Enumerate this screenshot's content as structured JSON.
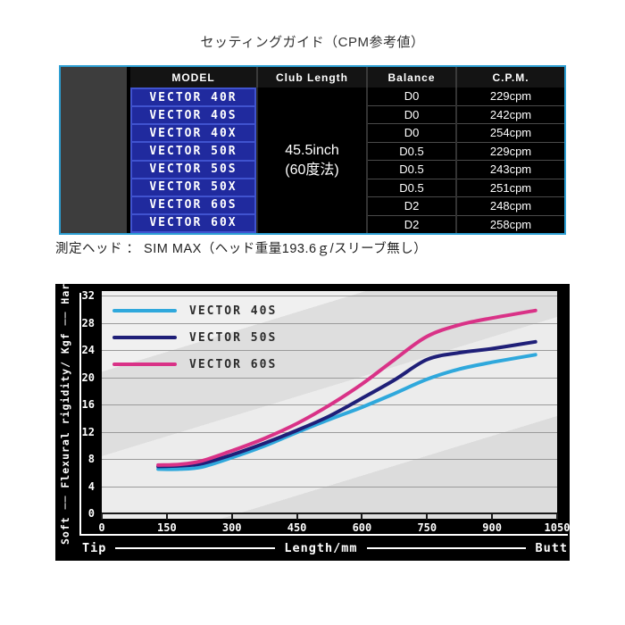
{
  "title": "セッティングガイド（CPM参考値）",
  "table": {
    "headers": [
      "MODEL",
      "Club Length",
      "Balance",
      "C.P.M."
    ],
    "club_length_line1": "45.5inch",
    "club_length_line2": "(60度法)",
    "rows": [
      {
        "model": "VECTOR 40R",
        "balance": "D0",
        "cpm": "229cpm"
      },
      {
        "model": "VECTOR 40S",
        "balance": "D0",
        "cpm": "242cpm"
      },
      {
        "model": "VECTOR 40X",
        "balance": "D0",
        "cpm": "254cpm"
      },
      {
        "model": "VECTOR 50R",
        "balance": "D0.5",
        "cpm": "229cpm"
      },
      {
        "model": "VECTOR 50S",
        "balance": "D0.5",
        "cpm": "243cpm"
      },
      {
        "model": "VECTOR 50X",
        "balance": "D0.5",
        "cpm": "251cpm"
      },
      {
        "model": "VECTOR 60S",
        "balance": "D2",
        "cpm": "248cpm"
      },
      {
        "model": "VECTOR 60X",
        "balance": "D2",
        "cpm": "258cpm"
      }
    ]
  },
  "note": "測定ヘッド ： SIM MAX（ヘッド重量193.6ｇ/スリーブ無し）",
  "colors": {
    "table_border": "#2d9fd3",
    "model_cell_bg": "#202a9e",
    "model_cell_border": "#4053cf",
    "side_panel": "#3d3d3d"
  },
  "chart_data": {
    "type": "line",
    "title": "",
    "xlabel": "Length/mm",
    "ylabel": "Soft ── Flexural rigidity/ Kgf ── Hard",
    "x_end_left": "Tip",
    "x_end_right": "Butt",
    "xlim": [
      0,
      1050
    ],
    "ylim": [
      0,
      33
    ],
    "x_ticks": [
      0,
      150,
      300,
      450,
      600,
      750,
      900,
      1050
    ],
    "y_ticks": [
      0,
      4,
      8,
      12,
      16,
      20,
      24,
      28,
      32
    ],
    "grid": true,
    "legend_position": "top-left",
    "series": [
      {
        "name": "VECTOR 40S",
        "color": "#2fa8dc",
        "points": [
          [
            130,
            6.5
          ],
          [
            180,
            6.5
          ],
          [
            230,
            6.8
          ],
          [
            300,
            8.2
          ],
          [
            375,
            9.9
          ],
          [
            450,
            11.9
          ],
          [
            525,
            13.8
          ],
          [
            600,
            15.6
          ],
          [
            675,
            17.6
          ],
          [
            750,
            19.7
          ],
          [
            825,
            21.2
          ],
          [
            900,
            22.2
          ],
          [
            1000,
            23.3
          ]
        ]
      },
      {
        "name": "VECTOR 50S",
        "color": "#1f1f78",
        "points": [
          [
            130,
            6.9
          ],
          [
            180,
            7.0
          ],
          [
            230,
            7.3
          ],
          [
            300,
            8.6
          ],
          [
            375,
            10.3
          ],
          [
            450,
            12.2
          ],
          [
            525,
            14.3
          ],
          [
            600,
            16.9
          ],
          [
            675,
            19.6
          ],
          [
            750,
            22.6
          ],
          [
            825,
            23.6
          ],
          [
            900,
            24.2
          ],
          [
            1000,
            25.2
          ]
        ]
      },
      {
        "name": "VECTOR 60S",
        "color": "#d93287",
        "points": [
          [
            130,
            7.1
          ],
          [
            180,
            7.2
          ],
          [
            230,
            7.7
          ],
          [
            300,
            9.2
          ],
          [
            375,
            11.0
          ],
          [
            450,
            13.2
          ],
          [
            525,
            15.9
          ],
          [
            600,
            19.0
          ],
          [
            675,
            22.6
          ],
          [
            750,
            26.0
          ],
          [
            825,
            27.7
          ],
          [
            900,
            28.7
          ],
          [
            1000,
            29.8
          ]
        ]
      }
    ]
  }
}
